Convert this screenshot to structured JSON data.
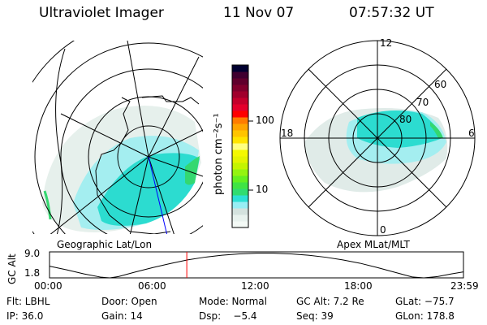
{
  "header": {
    "instrument": "Ultraviolet Imager",
    "date": "11 Nov 07",
    "time": "07:57:32 UT"
  },
  "colorbar": {
    "label": "photon cm⁻²s⁻¹",
    "ticks": [
      "100",
      "10"
    ],
    "colors": [
      "#f4faf6",
      "#e8f2ee",
      "#d4e2de",
      "#98eef4",
      "#2ce0d4",
      "#30dc70",
      "#40e444",
      "#64f020",
      "#94f410",
      "#c4f400",
      "#e4f400",
      "#f4f800",
      "#ffff80",
      "#ffe400",
      "#ffc400",
      "#ffa400",
      "#ff7c00",
      "#ff0000",
      "#e4002c",
      "#c4002c",
      "#a0002c",
      "#80002c",
      "#60002c",
      "#400030",
      "#000030"
    ]
  },
  "left_map": {
    "caption": "Geographic Lat/Lon"
  },
  "right_map": {
    "caption": "Apex MLat/MLT",
    "mlt_labels": {
      "top": "12",
      "left": "18",
      "right": "6",
      "bottom": "0"
    },
    "lat_labels": [
      "80",
      "70",
      "60"
    ]
  },
  "orbit": {
    "ylabel": "GC Alt",
    "ytick_top": "9.0",
    "ytick_bottom": "1.8",
    "xticks": [
      "00:00",
      "06:00",
      "12:00",
      "18:00",
      "23:59"
    ],
    "altitude_re": [
      [
        0,
        5.3
      ],
      [
        1,
        4.2
      ],
      [
        2,
        3.0
      ],
      [
        3,
        2.0
      ],
      [
        3.5,
        1.8
      ],
      [
        4,
        2.2
      ],
      [
        5,
        3.6
      ],
      [
        6,
        4.9
      ],
      [
        7,
        6.1
      ],
      [
        8,
        7.2
      ],
      [
        9,
        8.0
      ],
      [
        10,
        8.6
      ],
      [
        11,
        9.0
      ],
      [
        12,
        9.2
      ],
      [
        13,
        9.2
      ],
      [
        14,
        9.0
      ],
      [
        15,
        8.6
      ],
      [
        16,
        8.0
      ],
      [
        17,
        7.2
      ],
      [
        18,
        6.2
      ],
      [
        19,
        4.9
      ],
      [
        20,
        3.5
      ],
      [
        21,
        2.1
      ],
      [
        21.7,
        1.8
      ],
      [
        22.5,
        2.2
      ],
      [
        23.3,
        3.0
      ],
      [
        24,
        3.6
      ]
    ],
    "current_hour": 7.959,
    "marker_color": "#ff0000"
  },
  "info": {
    "row1": [
      "Flt: LBHL",
      "Door: Open",
      "Mode: Normal",
      "GC Alt: 7.2 Re",
      "GLat: −75.7"
    ],
    "row2": [
      "IP: 36.0",
      "Gain: 14",
      "Dsp:    −5.4",
      "Seq: 39",
      "GLon: 178.8"
    ]
  }
}
